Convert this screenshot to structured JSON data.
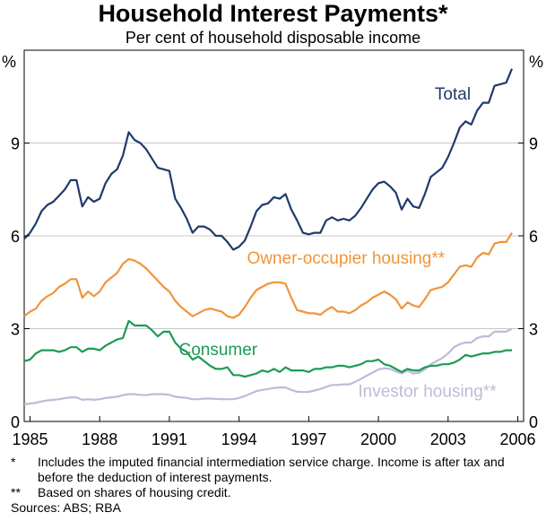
{
  "header": {
    "title": "Household Interest Payments*",
    "subtitle": "Per cent of household disposable income"
  },
  "footnotes": [
    {
      "mark": "*",
      "text": "Includes the imputed financial intermediation service charge. Income is after tax and before the deduction of interest payments."
    },
    {
      "mark": "**",
      "text": "Based on shares of housing credit."
    }
  ],
  "sources": "Sources: ABS; RBA",
  "chart_data": {
    "type": "line",
    "ylabel_left": "%",
    "ylabel_right": "%",
    "ylim": [
      0,
      12
    ],
    "yticks": [
      0,
      3,
      6,
      9
    ],
    "xlim": [
      1984.75,
      2006.25
    ],
    "xticks": [
      1985,
      1988,
      1991,
      1994,
      1997,
      2000,
      2003,
      2006
    ],
    "grid": true,
    "colors": {
      "Total": "#1f3a6b",
      "Owner-occupier housing**": "#f0943c",
      "Consumer": "#1e9b55",
      "Investor housing**": "#bdbbd8"
    },
    "series": [
      {
        "name": "Total",
        "label_anchor": [
          2003.2,
          10.4
        ],
        "x": [
          1984.75,
          1985,
          1985.25,
          1985.5,
          1985.75,
          1986,
          1986.25,
          1986.5,
          1986.75,
          1987,
          1987.25,
          1987.5,
          1987.75,
          1988,
          1988.25,
          1988.5,
          1988.75,
          1989,
          1989.25,
          1989.5,
          1989.75,
          1990,
          1990.25,
          1990.5,
          1990.75,
          1991,
          1991.25,
          1991.5,
          1991.75,
          1992,
          1992.25,
          1992.5,
          1992.75,
          1993,
          1993.25,
          1993.5,
          1993.75,
          1994,
          1994.25,
          1994.5,
          1994.75,
          1995,
          1995.25,
          1995.5,
          1995.75,
          1996,
          1996.25,
          1996.5,
          1996.75,
          1997,
          1997.25,
          1997.5,
          1997.75,
          1998,
          1998.25,
          1998.5,
          1998.75,
          1999,
          1999.25,
          1999.5,
          1999.75,
          2000,
          2000.25,
          2000.5,
          2000.75,
          2001,
          2001.25,
          2001.5,
          2001.75,
          2002,
          2002.25,
          2002.5,
          2002.75,
          2003,
          2003.25,
          2003.5,
          2003.75,
          2004,
          2004.25,
          2004.5,
          2004.75,
          2005,
          2005.25,
          2005.5,
          2005.75
        ],
        "values": [
          5.9,
          6.1,
          6.4,
          6.8,
          7.0,
          7.1,
          7.3,
          7.5,
          7.8,
          7.8,
          6.95,
          7.25,
          7.1,
          7.2,
          7.7,
          8.0,
          8.15,
          8.6,
          9.35,
          9.1,
          9.0,
          8.8,
          8.5,
          8.2,
          8.15,
          8.1,
          7.2,
          6.9,
          6.55,
          6.1,
          6.3,
          6.3,
          6.2,
          6.0,
          6.0,
          5.8,
          5.55,
          5.65,
          5.85,
          6.3,
          6.8,
          7.0,
          7.05,
          7.25,
          7.2,
          7.35,
          6.85,
          6.5,
          6.1,
          6.05,
          6.1,
          6.1,
          6.5,
          6.6,
          6.5,
          6.55,
          6.5,
          6.65,
          6.9,
          7.2,
          7.5,
          7.7,
          7.75,
          7.6,
          7.4,
          6.85,
          7.2,
          6.95,
          6.9,
          7.35,
          7.9,
          8.05,
          8.2,
          8.55,
          9.0,
          9.5,
          9.7,
          9.6,
          10.05,
          10.3,
          10.3,
          10.85,
          10.9,
          10.95,
          11.4
        ]
      },
      {
        "name": "Owner-occupier housing**",
        "label_anchor": [
          1998.6,
          5.1
        ],
        "x": [
          1984.75,
          1985,
          1985.25,
          1985.5,
          1985.75,
          1986,
          1986.25,
          1986.5,
          1986.75,
          1987,
          1987.25,
          1987.5,
          1987.75,
          1988,
          1988.25,
          1988.5,
          1988.75,
          1989,
          1989.25,
          1989.5,
          1989.75,
          1990,
          1990.25,
          1990.5,
          1990.75,
          1991,
          1991.25,
          1991.5,
          1991.75,
          1992,
          1992.25,
          1992.5,
          1992.75,
          1993,
          1993.25,
          1993.5,
          1993.75,
          1994,
          1994.25,
          1994.5,
          1994.75,
          1995,
          1995.25,
          1995.5,
          1995.75,
          1996,
          1996.25,
          1996.5,
          1996.75,
          1997,
          1997.25,
          1997.5,
          1997.75,
          1998,
          1998.25,
          1998.5,
          1998.75,
          1999,
          1999.25,
          1999.5,
          1999.75,
          2000,
          2000.25,
          2000.5,
          2000.75,
          2001,
          2001.25,
          2001.5,
          2001.75,
          2002,
          2002.25,
          2002.5,
          2002.75,
          2003,
          2003.25,
          2003.5,
          2003.75,
          2004,
          2004.25,
          2004.5,
          2004.75,
          2005,
          2005.25,
          2005.5,
          2005.75
        ],
        "values": [
          3.4,
          3.55,
          3.65,
          3.9,
          4.05,
          4.15,
          4.35,
          4.45,
          4.6,
          4.6,
          4.0,
          4.2,
          4.05,
          4.2,
          4.5,
          4.65,
          4.8,
          5.1,
          5.25,
          5.2,
          5.1,
          4.95,
          4.75,
          4.55,
          4.35,
          4.2,
          3.9,
          3.7,
          3.55,
          3.4,
          3.5,
          3.6,
          3.65,
          3.6,
          3.55,
          3.4,
          3.35,
          3.45,
          3.7,
          4.0,
          4.25,
          4.35,
          4.45,
          4.5,
          4.5,
          4.45,
          4.0,
          3.6,
          3.55,
          3.5,
          3.5,
          3.45,
          3.6,
          3.7,
          3.55,
          3.55,
          3.5,
          3.6,
          3.75,
          3.85,
          4.0,
          4.1,
          4.2,
          4.1,
          3.95,
          3.65,
          3.85,
          3.75,
          3.7,
          3.95,
          4.25,
          4.3,
          4.35,
          4.5,
          4.75,
          5.0,
          5.05,
          5.0,
          5.3,
          5.45,
          5.4,
          5.75,
          5.8,
          5.8,
          6.1
        ]
      },
      {
        "name": "Consumer",
        "label_anchor": [
          1993.1,
          2.15
        ],
        "x": [
          1984.75,
          1985,
          1985.25,
          1985.5,
          1985.75,
          1986,
          1986.25,
          1986.5,
          1986.75,
          1987,
          1987.25,
          1987.5,
          1987.75,
          1988,
          1988.25,
          1988.5,
          1988.75,
          1989,
          1989.25,
          1989.5,
          1989.75,
          1990,
          1990.25,
          1990.5,
          1990.75,
          1991,
          1991.25,
          1991.5,
          1991.75,
          1992,
          1992.25,
          1992.5,
          1992.75,
          1993,
          1993.25,
          1993.5,
          1993.75,
          1994,
          1994.25,
          1994.5,
          1994.75,
          1995,
          1995.25,
          1995.5,
          1995.75,
          1996,
          1996.25,
          1996.5,
          1996.75,
          1997,
          1997.25,
          1997.5,
          1997.75,
          1998,
          1998.25,
          1998.5,
          1998.75,
          1999,
          1999.25,
          1999.5,
          1999.75,
          2000,
          2000.25,
          2000.5,
          2000.75,
          2001,
          2001.25,
          2001.5,
          2001.75,
          2002,
          2002.25,
          2002.5,
          2002.75,
          2003,
          2003.25,
          2003.5,
          2003.75,
          2004,
          2004.25,
          2004.5,
          2004.75,
          2005,
          2005.25,
          2005.5,
          2005.75
        ],
        "values": [
          1.95,
          2.0,
          2.2,
          2.3,
          2.3,
          2.3,
          2.25,
          2.3,
          2.4,
          2.4,
          2.25,
          2.35,
          2.35,
          2.3,
          2.45,
          2.55,
          2.65,
          2.7,
          3.25,
          3.1,
          3.1,
          3.1,
          2.95,
          2.75,
          2.9,
          2.9,
          2.55,
          2.35,
          2.25,
          2.0,
          2.1,
          1.95,
          1.8,
          1.7,
          1.7,
          1.75,
          1.5,
          1.5,
          1.45,
          1.5,
          1.55,
          1.65,
          1.6,
          1.7,
          1.6,
          1.75,
          1.65,
          1.65,
          1.65,
          1.6,
          1.7,
          1.7,
          1.75,
          1.75,
          1.8,
          1.8,
          1.75,
          1.8,
          1.85,
          1.95,
          1.95,
          2.0,
          1.85,
          1.8,
          1.7,
          1.6,
          1.7,
          1.65,
          1.65,
          1.75,
          1.8,
          1.8,
          1.85,
          1.85,
          1.9,
          2.0,
          2.15,
          2.1,
          2.15,
          2.2,
          2.2,
          2.25,
          2.25,
          2.3,
          2.3
        ]
      },
      {
        "name": "Investor housing**",
        "label_anchor": [
          2002.1,
          0.8
        ],
        "x": [
          1984.75,
          1985,
          1985.25,
          1985.5,
          1985.75,
          1986,
          1986.25,
          1986.5,
          1986.75,
          1987,
          1987.25,
          1987.5,
          1987.75,
          1988,
          1988.25,
          1988.5,
          1988.75,
          1989,
          1989.25,
          1989.5,
          1989.75,
          1990,
          1990.25,
          1990.5,
          1990.75,
          1991,
          1991.25,
          1991.5,
          1991.75,
          1992,
          1992.25,
          1992.5,
          1992.75,
          1993,
          1993.25,
          1993.5,
          1993.75,
          1994,
          1994.25,
          1994.5,
          1994.75,
          1995,
          1995.25,
          1995.5,
          1995.75,
          1996,
          1996.25,
          1996.5,
          1996.75,
          1997,
          1997.25,
          1997.5,
          1997.75,
          1998,
          1998.25,
          1998.5,
          1998.75,
          1999,
          1999.25,
          1999.5,
          1999.75,
          2000,
          2000.25,
          2000.5,
          2000.75,
          2001,
          2001.25,
          2001.5,
          2001.75,
          2002,
          2002.25,
          2002.5,
          2002.75,
          2003,
          2003.25,
          2003.5,
          2003.75,
          2004,
          2004.25,
          2004.5,
          2004.75,
          2005,
          2005.25,
          2005.5,
          2005.75
        ],
        "values": [
          0.55,
          0.58,
          0.6,
          0.65,
          0.68,
          0.7,
          0.72,
          0.75,
          0.78,
          0.78,
          0.7,
          0.72,
          0.7,
          0.72,
          0.76,
          0.78,
          0.8,
          0.85,
          0.88,
          0.88,
          0.86,
          0.85,
          0.88,
          0.88,
          0.88,
          0.86,
          0.8,
          0.78,
          0.76,
          0.72,
          0.72,
          0.74,
          0.74,
          0.73,
          0.72,
          0.72,
          0.72,
          0.76,
          0.82,
          0.9,
          0.98,
          1.02,
          1.05,
          1.08,
          1.1,
          1.1,
          1.02,
          0.96,
          0.95,
          0.96,
          1.0,
          1.05,
          1.12,
          1.18,
          1.18,
          1.2,
          1.2,
          1.28,
          1.38,
          1.48,
          1.58,
          1.68,
          1.72,
          1.7,
          1.62,
          1.55,
          1.65,
          1.55,
          1.58,
          1.68,
          1.85,
          1.95,
          2.05,
          2.2,
          2.4,
          2.5,
          2.55,
          2.55,
          2.7,
          2.75,
          2.75,
          2.9,
          2.9,
          2.9,
          3.0
        ]
      }
    ]
  }
}
